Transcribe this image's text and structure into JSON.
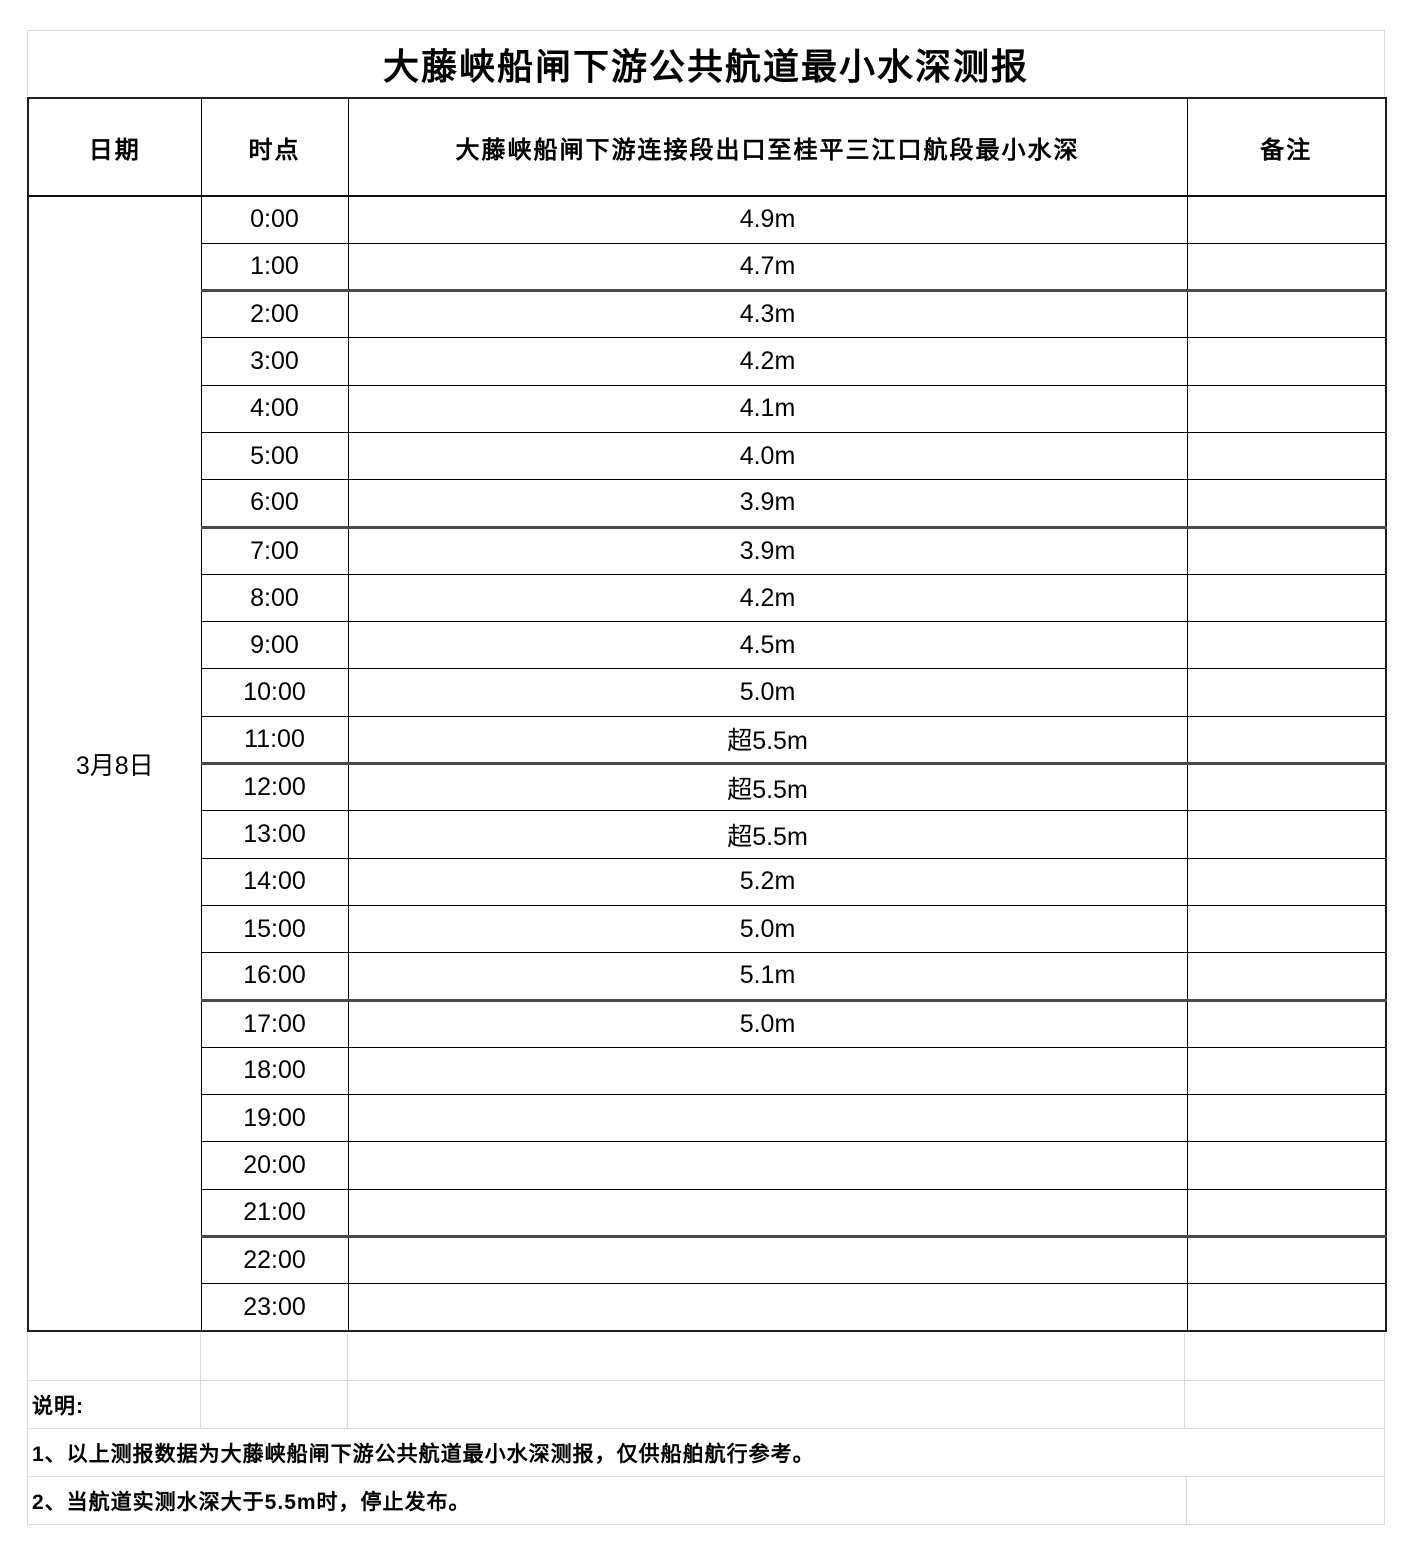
{
  "title": "大藤峡船闸下游公共航道最小水深测报",
  "table": {
    "headers": {
      "date": "日期",
      "time": "时点",
      "depth": "大藤峡船闸下游连接段出口至桂平三江口航段最小水深",
      "remark": "备注"
    },
    "date": "3月8日",
    "rows": [
      {
        "time": "0:00",
        "depth": "4.9m",
        "remark": ""
      },
      {
        "time": "1:00",
        "depth": "4.7m",
        "remark": ""
      },
      {
        "time": "2:00",
        "depth": "4.3m",
        "remark": ""
      },
      {
        "time": "3:00",
        "depth": "4.2m",
        "remark": ""
      },
      {
        "time": "4:00",
        "depth": "4.1m",
        "remark": ""
      },
      {
        "time": "5:00",
        "depth": "4.0m",
        "remark": ""
      },
      {
        "time": "6:00",
        "depth": "3.9m",
        "remark": ""
      },
      {
        "time": "7:00",
        "depth": "3.9m",
        "remark": ""
      },
      {
        "time": "8:00",
        "depth": "4.2m",
        "remark": ""
      },
      {
        "time": "9:00",
        "depth": "4.5m",
        "remark": ""
      },
      {
        "time": "10:00",
        "depth": "5.0m",
        "remark": ""
      },
      {
        "time": "11:00",
        "depth": "超5.5m",
        "remark": ""
      },
      {
        "time": "12:00",
        "depth": "超5.5m",
        "remark": ""
      },
      {
        "time": "13:00",
        "depth": "超5.5m",
        "remark": ""
      },
      {
        "time": "14:00",
        "depth": "5.2m",
        "remark": ""
      },
      {
        "time": "15:00",
        "depth": "5.0m",
        "remark": ""
      },
      {
        "time": "16:00",
        "depth": "5.1m",
        "remark": ""
      },
      {
        "time": "17:00",
        "depth": "5.0m",
        "remark": ""
      },
      {
        "time": "18:00",
        "depth": "",
        "remark": ""
      },
      {
        "time": "19:00",
        "depth": "",
        "remark": ""
      },
      {
        "time": "20:00",
        "depth": "",
        "remark": ""
      },
      {
        "time": "21:00",
        "depth": "",
        "remark": ""
      },
      {
        "time": "22:00",
        "depth": "",
        "remark": ""
      },
      {
        "time": "23:00",
        "depth": "",
        "remark": ""
      }
    ]
  },
  "footer": {
    "label": "说明:",
    "notes": [
      "1、以上测报数据为大藤峡船闸下游公共航道最小水深测报，仅供船舶航行参考。",
      "2、当航道实测水深大于5.5m时，停止发布。"
    ]
  },
  "colors": {
    "text": "#000000",
    "border_outer": "#1f1f1f",
    "border_inner": "#000000",
    "separator_gray": "#4a4a4a",
    "grid_light": "#d9d9d9"
  }
}
